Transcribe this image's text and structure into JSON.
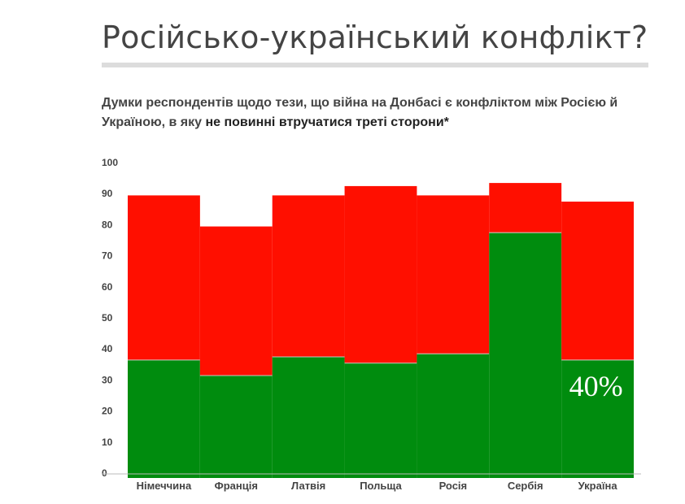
{
  "title": "Російсько-український конфлікт?",
  "subtitle_part1": "Думки респондентів щодо тези, що війна на Донбасі є конфліктом між Росією й Україною, в яку ",
  "subtitle_part2": "не повинні втручатися треті сторони*",
  "chart_data": {
    "type": "bar",
    "stacked": true,
    "categories": [
      "Німеччина",
      "Франція",
      "Латвія",
      "Польща",
      "Росія",
      "Сербія",
      "Україна"
    ],
    "series": [
      {
        "values": [
          38,
          33,
          39,
          37,
          40,
          79,
          38
        ],
        "color": "#008c0e"
      },
      {
        "values": [
          53,
          48,
          52,
          57,
          51,
          16,
          51
        ],
        "color": "#ff0f00"
      }
    ],
    "totals": [
      91,
      81,
      91,
      94,
      91,
      95,
      89
    ],
    "ylim": [
      0,
      100
    ],
    "yticks": [
      0,
      10,
      20,
      30,
      40,
      50,
      60,
      70,
      80,
      90,
      100
    ],
    "annotation": {
      "text": "40%",
      "category": "Україна"
    },
    "grid": false,
    "legend": "none"
  }
}
